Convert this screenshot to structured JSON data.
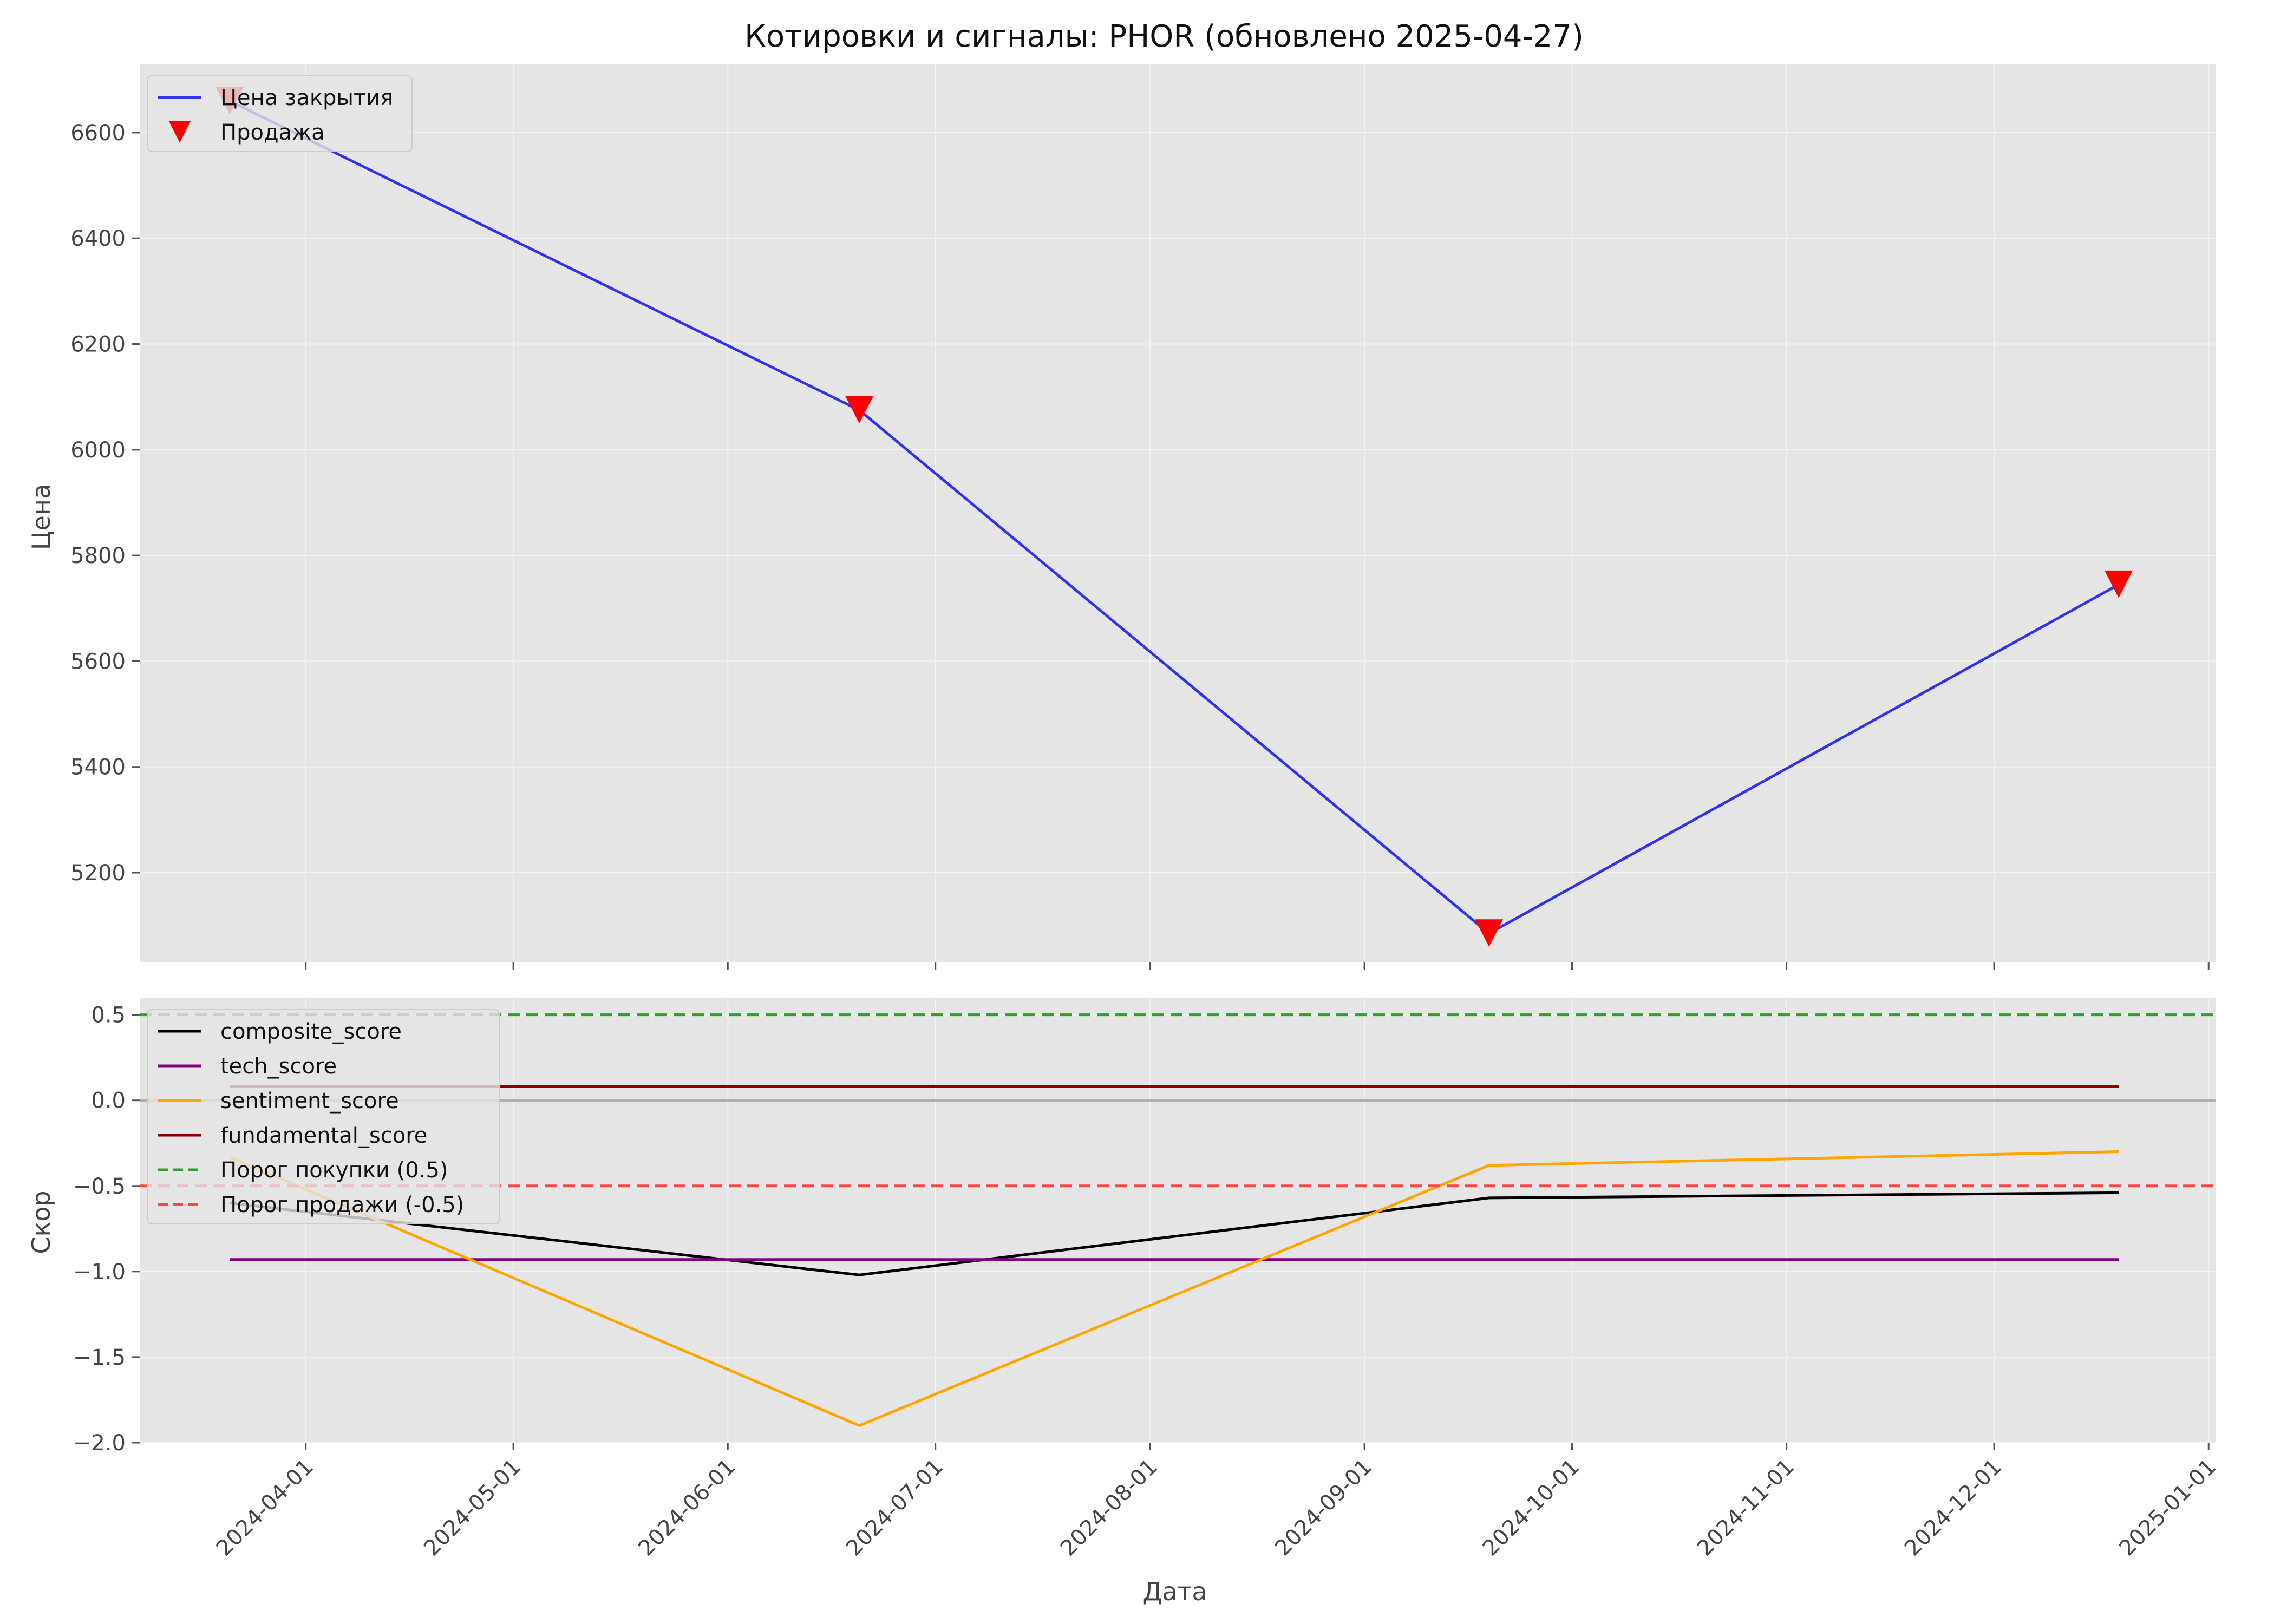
{
  "chart_data": [
    {
      "type": "line",
      "title": "Котировки и сигналы: PHOR (обновлено 2025-04-27)",
      "xlabel": "",
      "ylabel": "Цена",
      "y_ticks": [
        5200,
        5400,
        5600,
        5800,
        6000,
        6200,
        6400,
        6600
      ],
      "ylim": [
        5030,
        6730
      ],
      "xlim": [
        "2024-03-08",
        "2025-01-02"
      ],
      "x_ticks": [
        "2024-04-01",
        "2024-05-01",
        "2024-06-01",
        "2024-07-01",
        "2024-08-01",
        "2024-09-01",
        "2024-10-01",
        "2024-11-01",
        "2024-12-01",
        "2025-01-01"
      ],
      "grid": true,
      "legend_position": "top-left",
      "series": [
        {
          "name": "Цена закрытия",
          "color": "#3333ee",
          "kind": "line",
          "x": [
            "2024-03-21",
            "2024-06-20",
            "2024-09-19",
            "2024-12-19"
          ],
          "y": [
            6660,
            6075,
            5085,
            5745
          ]
        },
        {
          "name": "Продажа",
          "color": "#ff0000",
          "kind": "marker-triangle-down",
          "x": [
            "2024-03-21",
            "2024-06-20",
            "2024-09-19",
            "2024-12-19"
          ],
          "y": [
            6660,
            6075,
            5085,
            5745
          ]
        }
      ]
    },
    {
      "type": "line",
      "title": "",
      "xlabel": "Дата",
      "ylabel": "Скор",
      "y_ticks": [
        -2.0,
        -1.5,
        -1.0,
        -0.5,
        0.0,
        0.5
      ],
      "y_tick_labels": [
        "−2.0",
        "−1.5",
        "−1.0",
        "−0.5",
        "0.0",
        "0.5"
      ],
      "ylim": [
        -2.0,
        0.6
      ],
      "xlim": [
        "2024-03-08",
        "2025-01-02"
      ],
      "x_ticks": [
        "2024-04-01",
        "2024-05-01",
        "2024-06-01",
        "2024-07-01",
        "2024-08-01",
        "2024-09-01",
        "2024-10-01",
        "2024-11-01",
        "2024-12-01",
        "2025-01-01"
      ],
      "zero_line": 0.0,
      "grid": true,
      "legend_position": "top-left",
      "series": [
        {
          "name": "composite_score",
          "color": "#000000",
          "kind": "line",
          "x": [
            "2024-03-21",
            "2024-06-20",
            "2024-09-19",
            "2024-12-19"
          ],
          "y": [
            -0.6,
            -1.02,
            -0.57,
            -0.54
          ]
        },
        {
          "name": "tech_score",
          "color": "#800080",
          "kind": "line",
          "x": [
            "2024-03-21",
            "2024-06-20",
            "2024-09-19",
            "2024-12-19"
          ],
          "y": [
            -0.93,
            -0.93,
            -0.93,
            -0.93
          ]
        },
        {
          "name": "sentiment_score",
          "color": "#ffa500",
          "kind": "line",
          "x": [
            "2024-03-21",
            "2024-06-20",
            "2024-09-19",
            "2024-12-19"
          ],
          "y": [
            -0.33,
            -1.9,
            -0.38,
            -0.3
          ]
        },
        {
          "name": "fundamental_score",
          "color": "#8b0000",
          "kind": "line",
          "x": [
            "2024-03-21",
            "2024-06-20",
            "2024-09-19",
            "2024-12-19"
          ],
          "y": [
            0.08,
            0.08,
            0.08,
            0.08
          ]
        },
        {
          "name": "Порог покупки (0.5)",
          "color": "#2ca02c",
          "kind": "hline-dashed",
          "value": 0.5
        },
        {
          "name": "Порог продажи (-0.5)",
          "color": "#ff4444",
          "kind": "hline-dashed",
          "value": -0.5
        }
      ]
    }
  ]
}
